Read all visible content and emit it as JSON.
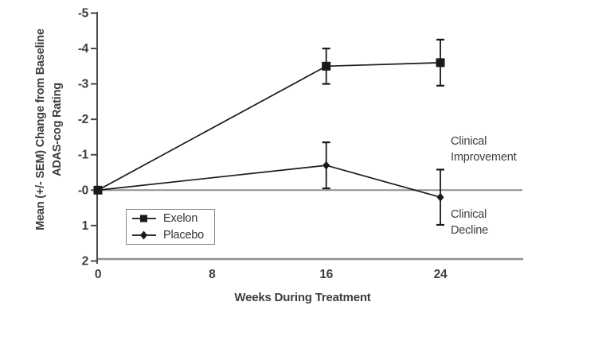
{
  "colors": {
    "background": "#ffffff",
    "axis": "#4a4a4a",
    "gray_line": "#8f8f8f",
    "series": "#1a1a1a",
    "text": "#3d3d3d"
  },
  "chart_data": {
    "type": "line",
    "title": "",
    "xlabel": "Weeks During Treatment",
    "ylabel_lines": [
      "Mean (+/- SEM) Change from Baseline",
      "ADAS-cog Rating"
    ],
    "x_ticks": [
      0,
      8,
      16,
      24
    ],
    "y_ticks": [
      "-5",
      "-4",
      "-3",
      "-2",
      "-1",
      "-0",
      "1",
      "2"
    ],
    "y_tick_values": [
      -5,
      -4,
      -3,
      -2,
      -1,
      0,
      1,
      2
    ],
    "xlim": [
      0,
      30
    ],
    "ylim": [
      -5,
      2
    ],
    "y_axis_inverted": true,
    "zero_line_value": 0,
    "grid": false,
    "legend_position": "inside-lower-left",
    "series": [
      {
        "name": "Exelon",
        "marker": "square",
        "x": [
          0,
          16,
          24
        ],
        "y": [
          0,
          -3.5,
          -3.6
        ],
        "sem": [
          0,
          0.5,
          0.65
        ]
      },
      {
        "name": "Placebo",
        "marker": "diamond",
        "x": [
          0,
          16,
          24
        ],
        "y": [
          0,
          -0.7,
          0.2
        ],
        "sem": [
          0,
          0.65,
          0.78
        ]
      }
    ],
    "annotations": [
      {
        "text": "Clinical\nImprovement",
        "side": "above-zero-line"
      },
      {
        "text": "Clinical\nDecline",
        "side": "below-zero-line"
      }
    ]
  }
}
